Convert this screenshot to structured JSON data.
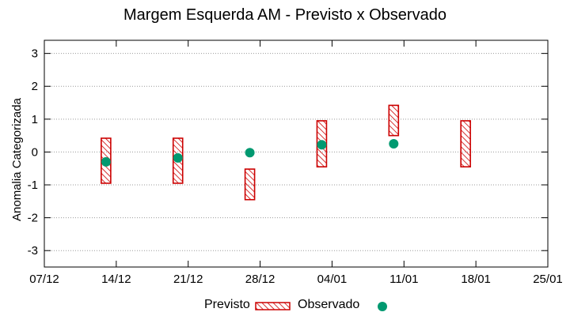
{
  "chart_data": {
    "type": "range-and-scatter",
    "title": "Margem Esquerda AM - Previsto x Observado",
    "ylabel": "Anomalia Categorizada",
    "xlabel": "",
    "xticks": [
      "07/12",
      "14/12",
      "21/12",
      "28/12",
      "04/01",
      "11/01",
      "18/01",
      "25/01"
    ],
    "yticks": [
      "-3",
      "-2",
      "-1",
      "0",
      "1",
      "2",
      "3"
    ],
    "ylim": [
      -3.5,
      3.4
    ],
    "grid": "horizontal dotted",
    "legend_position": "bottom",
    "series": [
      {
        "name": "Previsto",
        "kind": "range-bar",
        "color": "#cc0000",
        "points": [
          {
            "x": "13/12",
            "low": -0.95,
            "high": 0.42
          },
          {
            "x": "20/12",
            "low": -0.95,
            "high": 0.42
          },
          {
            "x": "27/12",
            "low": -1.45,
            "high": -0.52
          },
          {
            "x": "03/01",
            "low": -0.45,
            "high": 0.95
          },
          {
            "x": "10/01",
            "low": 0.5,
            "high": 1.42
          },
          {
            "x": "17/01",
            "low": -0.45,
            "high": 0.95
          }
        ]
      },
      {
        "name": "Observado",
        "kind": "point",
        "color": "#009970",
        "points": [
          {
            "x": "13/12",
            "y": -0.3
          },
          {
            "x": "20/12",
            "y": -0.18
          },
          {
            "x": "27/12",
            "y": -0.02
          },
          {
            "x": "03/01",
            "y": 0.22
          },
          {
            "x": "10/01",
            "y": 0.25
          }
        ]
      }
    ]
  }
}
